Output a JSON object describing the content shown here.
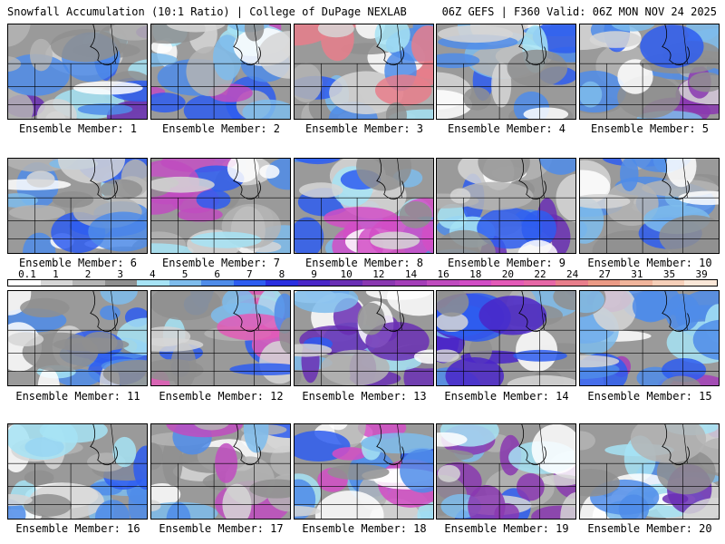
{
  "header": {
    "left": "Snowfall Accumulation (10:1 Ratio) | College of DuPage NEXLAB",
    "right": "06Z GEFS | F360 Valid: 06Z MON NOV 24 2025"
  },
  "colorbar": {
    "labels": [
      "0.1",
      "1",
      "2",
      "3",
      "4",
      "5",
      "6",
      "7",
      "8",
      "9",
      "10",
      "12",
      "14",
      "16",
      "18",
      "20",
      "22",
      "24",
      "27",
      "31",
      "35",
      "39"
    ],
    "colors": [
      "#ffffff",
      "#d6d6d6",
      "#b4b4b4",
      "#8f8f8f",
      "#a6e3f5",
      "#7ebcec",
      "#4f8ce9",
      "#2e5df0",
      "#2b2fe0",
      "#4a26c8",
      "#6a2fb4",
      "#8a38b0",
      "#a43eb8",
      "#c04cbf",
      "#d24ec6",
      "#e35ab7",
      "#e667a6",
      "#e87e8b",
      "#eb9a85",
      "#f0b49b",
      "#f6cfb8",
      "#fae7d8"
    ]
  },
  "members": [
    {
      "label": "Ensemble Member: 1",
      "accent": "#6a2fb4"
    },
    {
      "label": "Ensemble Member: 2",
      "accent": "#c04cbf"
    },
    {
      "label": "Ensemble Member: 3",
      "accent": "#e87e8b"
    },
    {
      "label": "Ensemble Member: 4",
      "accent": "#4f8ce9"
    },
    {
      "label": "Ensemble Member: 5",
      "accent": "#8a38b0"
    },
    {
      "label": "Ensemble Member: 6",
      "accent": "#2e5df0"
    },
    {
      "label": "Ensemble Member: 7",
      "accent": "#c04cbf"
    },
    {
      "label": "Ensemble Member: 8",
      "accent": "#d24ec6"
    },
    {
      "label": "Ensemble Member: 9",
      "accent": "#6a2fb4"
    },
    {
      "label": "Ensemble Member: 10",
      "accent": "#7ebcec"
    },
    {
      "label": "Ensemble Member: 11",
      "accent": "#4f8ce9"
    },
    {
      "label": "Ensemble Member: 12",
      "accent": "#e35ab7"
    },
    {
      "label": "Ensemble Member: 13",
      "accent": "#6a2fb4"
    },
    {
      "label": "Ensemble Member: 14",
      "accent": "#4a26c8"
    },
    {
      "label": "Ensemble Member: 15",
      "accent": "#a43eb8"
    },
    {
      "label": "Ensemble Member: 16",
      "accent": "#4f8ce9"
    },
    {
      "label": "Ensemble Member: 17",
      "accent": "#c04cbf"
    },
    {
      "label": "Ensemble Member: 18",
      "accent": "#d24ec6"
    },
    {
      "label": "Ensemble Member: 19",
      "accent": "#8a38b0"
    },
    {
      "label": "Ensemble Member: 20",
      "accent": "#6a2fb4"
    }
  ]
}
